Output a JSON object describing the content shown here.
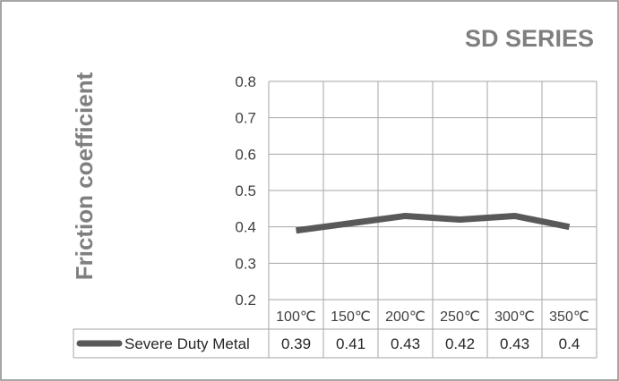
{
  "chart_data": {
    "type": "line",
    "title": "SD SERIES",
    "xlabel": "",
    "ylabel": "Friction coefficient",
    "categories": [
      "100℃",
      "150℃",
      "200℃",
      "250℃",
      "300℃",
      "350℃"
    ],
    "series": [
      {
        "name": "Severe Duty Metal",
        "values": [
          0.39,
          0.41,
          0.43,
          0.42,
          0.43,
          0.4
        ],
        "labels": [
          "0.39",
          "0.41",
          "0.43",
          "0.42",
          "0.43",
          "0.4"
        ]
      }
    ],
    "ylim": [
      0.2,
      0.8
    ],
    "yticks": [
      "0.2",
      "0.3",
      "0.4",
      "0.5",
      "0.6",
      "0.7",
      "0.8"
    ],
    "grid": true,
    "legend": "data-table",
    "colors": {
      "line": "#595959",
      "text": "#7f7f7f",
      "grid": "#a6a6a6"
    }
  }
}
